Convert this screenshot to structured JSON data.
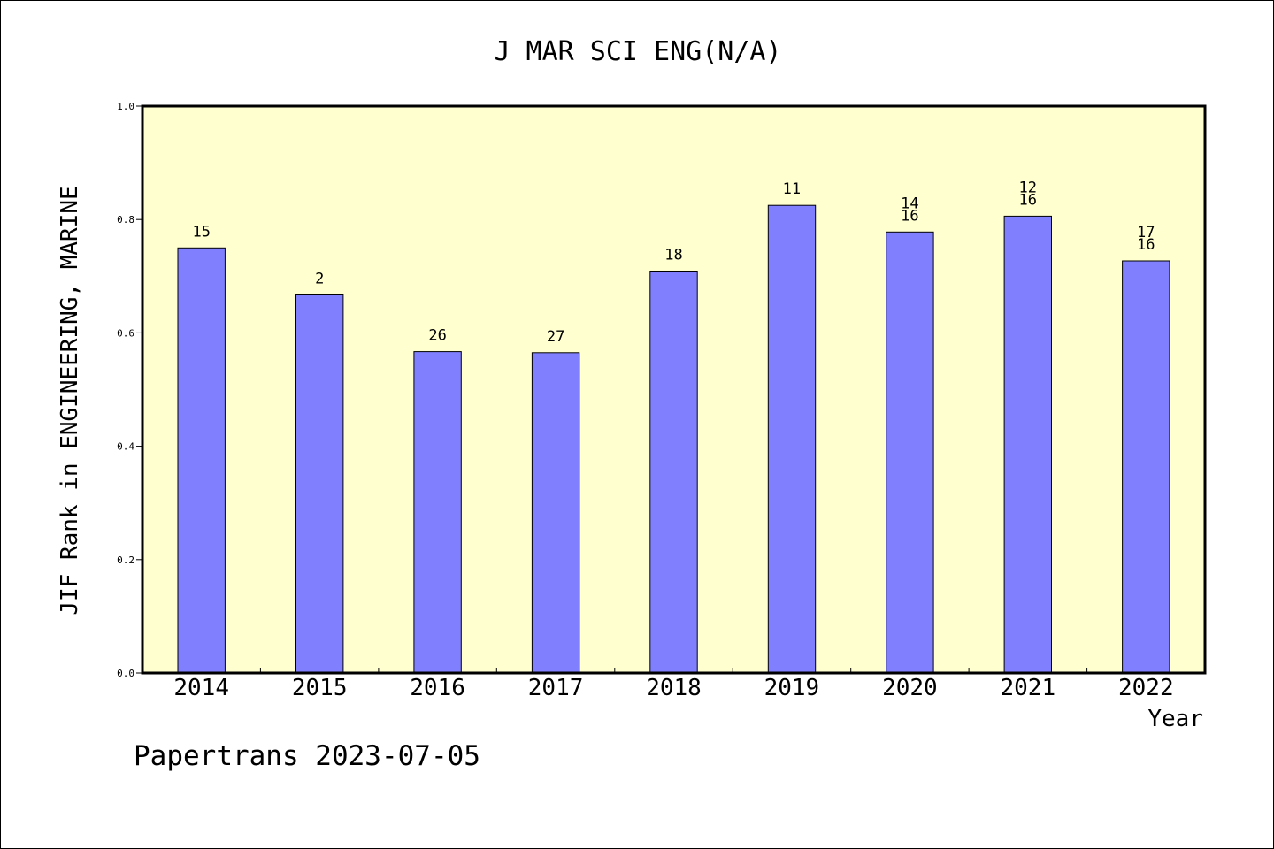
{
  "chart_data": {
    "type": "bar",
    "title": "J MAR SCI ENG(N/A)",
    "xlabel": "Year",
    "ylabel": "JIF Rank in ENGINEERING, MARINE",
    "ylim": [
      0,
      1.0
    ],
    "yticks": [
      "0.0",
      "0.2",
      "0.4",
      "0.6",
      "0.8",
      "1.0"
    ],
    "categories": [
      "2014",
      "2015",
      "2016",
      "2017",
      "2018",
      "2019",
      "2020",
      "2021",
      "2022"
    ],
    "values": [
      0.75,
      0.667,
      0.567,
      0.565,
      0.709,
      0.825,
      0.778,
      0.806,
      0.727
    ],
    "bar_labels": [
      [
        "15"
      ],
      [
        "2"
      ],
      [
        "26"
      ],
      [
        "27"
      ],
      [
        "18"
      ],
      [
        "11"
      ],
      [
        "14",
        "16"
      ],
      [
        "12",
        "16"
      ],
      [
        "17",
        "16"
      ]
    ],
    "bar_color": "#8080ff",
    "plot_background": "#ffffd0",
    "grid": false
  },
  "footer": "Papertrans 2023-07-05"
}
